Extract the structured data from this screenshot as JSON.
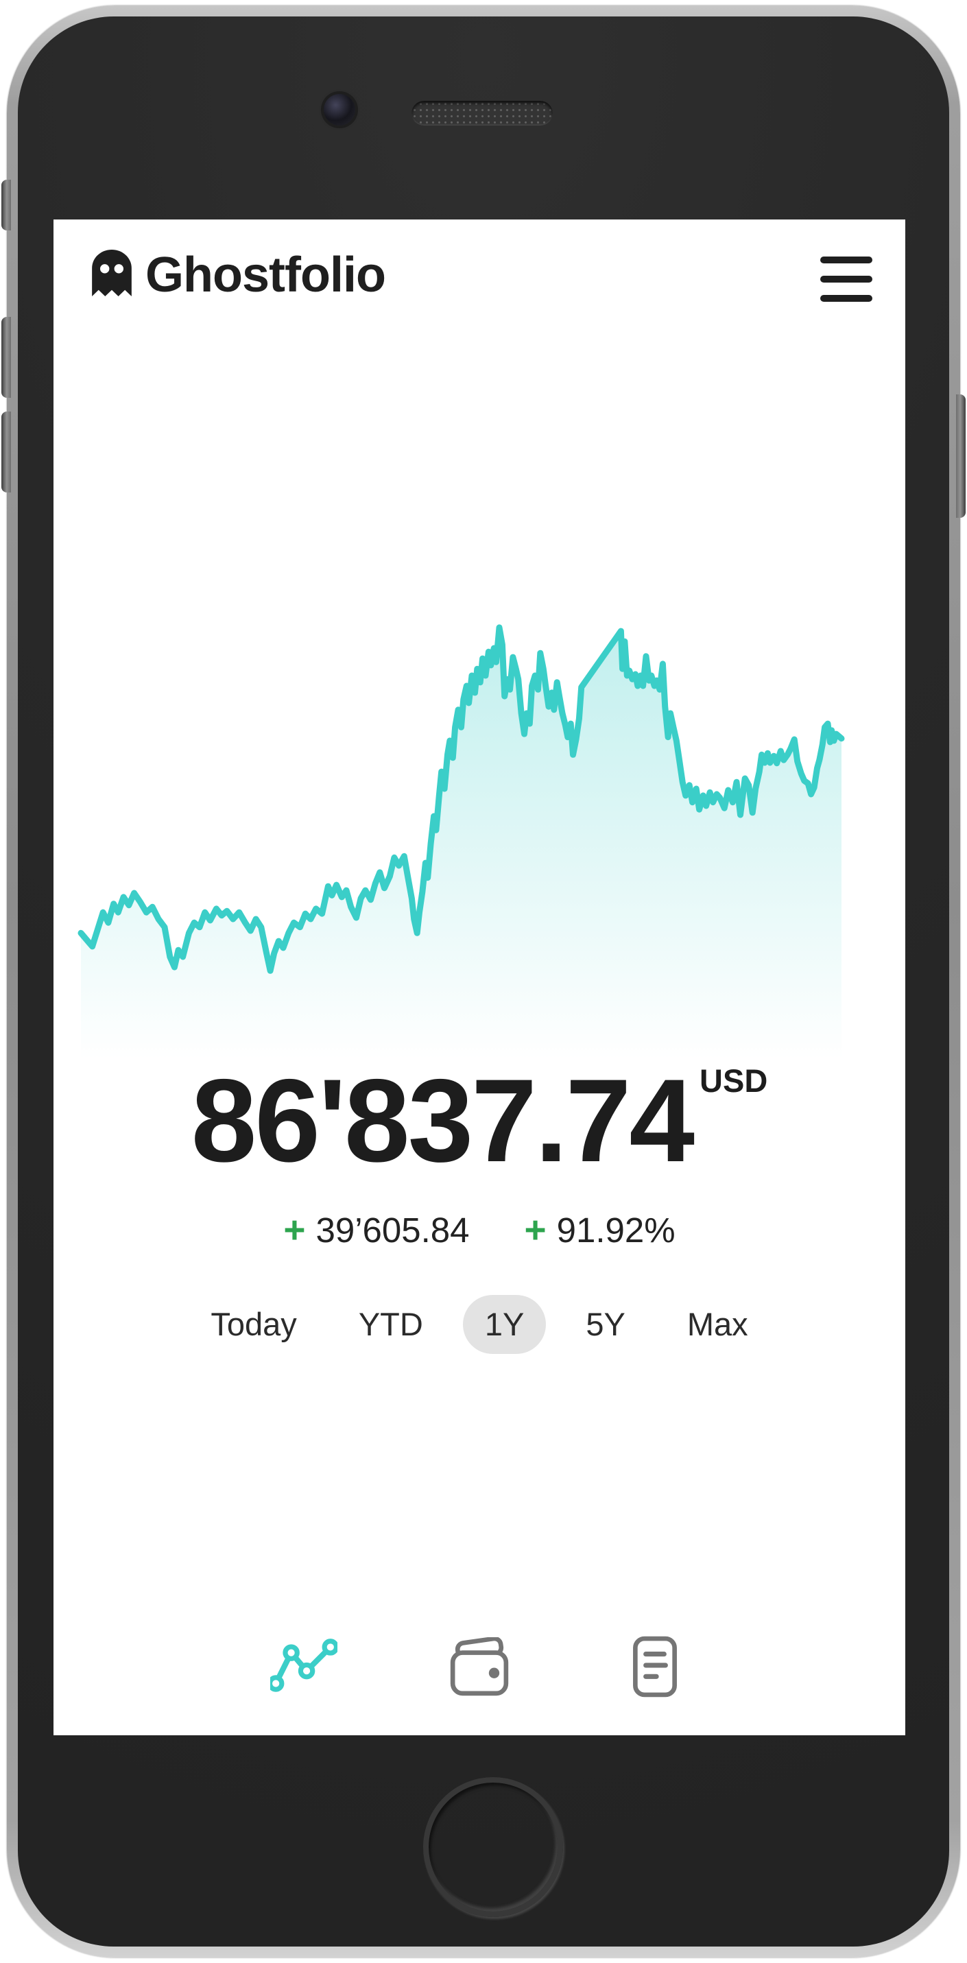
{
  "header": {
    "title": "Ghostfolio",
    "logo_icon": "ghost-icon",
    "menu_icon": "hamburger-icon"
  },
  "portfolio": {
    "value": "86'837.74",
    "currency": "USD",
    "change_sign": "+",
    "change_absolute": "39’605.84",
    "change_percent": "91.92%"
  },
  "ranges": {
    "selected": "1Y",
    "options": [
      {
        "label": "Today"
      },
      {
        "label": "YTD"
      },
      {
        "label": "1Y"
      },
      {
        "label": "5Y"
      },
      {
        "label": "Max"
      }
    ]
  },
  "nav": {
    "items": [
      {
        "icon": "performance-line-icon",
        "active": true
      },
      {
        "icon": "wallet-icon",
        "active": false
      },
      {
        "icon": "transactions-icon",
        "active": false
      }
    ]
  },
  "colors": {
    "chart_line": "#3bcec8",
    "chart_fill_top": "rgba(61,206,201,0.32)",
    "chart_fill_bottom": "rgba(61,206,201,0)",
    "positive_green": "#2da44e",
    "text_primary": "#1f1f1f",
    "range_pill_bg": "#e3e3e3",
    "nav_inactive": "#7a7a7a"
  },
  "chart_data": {
    "type": "area",
    "title": "",
    "xlabel": "",
    "ylabel": "",
    "axes_hidden": true,
    "x_unit": "percent-of-width",
    "y_unit": "percent-of-height-from-top",
    "points": [
      [
        0,
        71.8
      ],
      [
        1.5,
        74.8
      ],
      [
        2.9,
        67.2
      ],
      [
        3.6,
        69.5
      ],
      [
        4.3,
        65.3
      ],
      [
        4.9,
        67.2
      ],
      [
        5.6,
        63.8
      ],
      [
        6.3,
        65.6
      ],
      [
        7,
        62.9
      ],
      [
        7.8,
        64.9
      ],
      [
        8.6,
        67.2
      ],
      [
        9.4,
        66
      ],
      [
        10.2,
        68.7
      ],
      [
        11,
        70.5
      ],
      [
        11.7,
        77.1
      ],
      [
        12.3,
        79.4
      ],
      [
        12.8,
        75.6
      ],
      [
        13.4,
        77.1
      ],
      [
        14.2,
        71.8
      ],
      [
        14.9,
        69.5
      ],
      [
        15.6,
        70.5
      ],
      [
        16.3,
        67.2
      ],
      [
        17,
        69
      ],
      [
        17.8,
        66.4
      ],
      [
        18.5,
        67.9
      ],
      [
        19.2,
        66.9
      ],
      [
        20,
        68.7
      ],
      [
        20.8,
        67.2
      ],
      [
        21.6,
        69.5
      ],
      [
        22.3,
        71.3
      ],
      [
        23,
        68.7
      ],
      [
        23.7,
        70.5
      ],
      [
        24.4,
        76.3
      ],
      [
        24.9,
        80.2
      ],
      [
        25.4,
        76.3
      ],
      [
        26,
        73.6
      ],
      [
        26.6,
        75.1
      ],
      [
        27.3,
        71.8
      ],
      [
        28,
        69.5
      ],
      [
        28.8,
        70.5
      ],
      [
        29.5,
        67.5
      ],
      [
        30.2,
        68.7
      ],
      [
        30.9,
        66.4
      ],
      [
        31.7,
        67.5
      ],
      [
        32.5,
        61.4
      ],
      [
        33,
        63.4
      ],
      [
        33.6,
        61.1
      ],
      [
        34.3,
        63.8
      ],
      [
        34.9,
        62.3
      ],
      [
        35.5,
        66
      ],
      [
        36.2,
        68.4
      ],
      [
        36.8,
        64.1
      ],
      [
        37.4,
        62.3
      ],
      [
        38.1,
        64.4
      ],
      [
        38.7,
        60.8
      ],
      [
        39.3,
        58.3
      ],
      [
        39.9,
        61.8
      ],
      [
        40.6,
        59.2
      ],
      [
        41.2,
        55
      ],
      [
        41.8,
        56.8
      ],
      [
        42.5,
        54.7
      ],
      [
        43,
        59.5
      ],
      [
        43.5,
        64.1
      ],
      [
        43.8,
        68.7
      ],
      [
        44.2,
        71.8
      ],
      [
        44.5,
        67.2
      ],
      [
        44.9,
        62.6
      ],
      [
        45.3,
        56.2
      ],
      [
        45.6,
        59.5
      ],
      [
        46,
        51.9
      ],
      [
        46.4,
        45.8
      ],
      [
        46.7,
        48.9
      ],
      [
        47.1,
        41.2
      ],
      [
        47.4,
        35.9
      ],
      [
        47.8,
        39.7
      ],
      [
        48.2,
        32.1
      ],
      [
        48.5,
        29
      ],
      [
        48.9,
        32.8
      ],
      [
        49.2,
        26
      ],
      [
        49.6,
        22.1
      ],
      [
        50,
        26
      ],
      [
        50.3,
        19.8
      ],
      [
        50.7,
        16.8
      ],
      [
        51,
        20.6
      ],
      [
        51.4,
        14.5
      ],
      [
        51.8,
        18.3
      ],
      [
        52.1,
        13
      ],
      [
        52.5,
        16
      ],
      [
        52.8,
        10.7
      ],
      [
        53.2,
        14.5
      ],
      [
        53.6,
        9.2
      ],
      [
        53.9,
        12.2
      ],
      [
        54.3,
        8.4
      ],
      [
        54.6,
        11.5
      ],
      [
        55,
        3.8
      ],
      [
        55.4,
        7.6
      ],
      [
        55.7,
        19.1
      ],
      [
        56.1,
        15.3
      ],
      [
        56.4,
        17.6
      ],
      [
        56.8,
        10.4
      ],
      [
        57.2,
        13
      ],
      [
        57.5,
        15.3
      ],
      [
        57.9,
        22.9
      ],
      [
        58.3,
        27.5
      ],
      [
        58.6,
        22.9
      ],
      [
        59,
        25.2
      ],
      [
        59.3,
        16.8
      ],
      [
        59.7,
        14.5
      ],
      [
        60.1,
        17.6
      ],
      [
        60.4,
        9.5
      ],
      [
        60.8,
        13
      ],
      [
        61.1,
        16.8
      ],
      [
        61.5,
        21.4
      ],
      [
        61.9,
        18.3
      ],
      [
        62.2,
        22.1
      ],
      [
        62.6,
        16
      ],
      [
        62.9,
        19.1
      ],
      [
        63.3,
        22.9
      ],
      [
        63.7,
        25.6
      ],
      [
        64,
        28.2
      ],
      [
        64.4,
        25.2
      ],
      [
        64.7,
        32.1
      ],
      [
        65.1,
        28.7
      ],
      [
        65.5,
        24.1
      ],
      [
        65.8,
        17.1
      ],
      [
        71,
        4.6
      ],
      [
        71.2,
        13
      ],
      [
        71.5,
        6.9
      ],
      [
        71.8,
        14.5
      ],
      [
        72.1,
        13.4
      ],
      [
        72.5,
        15.3
      ],
      [
        72.9,
        14.2
      ],
      [
        73.2,
        16.8
      ],
      [
        73.6,
        14.5
      ],
      [
        73.9,
        16.8
      ],
      [
        74.3,
        10.2
      ],
      [
        74.7,
        15.6
      ],
      [
        75,
        14.5
      ],
      [
        75.4,
        16.8
      ],
      [
        75.7,
        15.6
      ],
      [
        76.1,
        17.6
      ],
      [
        76.5,
        11.9
      ],
      [
        76.8,
        21.4
      ],
      [
        77.2,
        28.2
      ],
      [
        77.5,
        22.9
      ],
      [
        77.9,
        26
      ],
      [
        78.3,
        29
      ],
      [
        78.7,
        33.6
      ],
      [
        79.1,
        38.2
      ],
      [
        79.5,
        41.2
      ],
      [
        80,
        38.9
      ],
      [
        80.4,
        42.7
      ],
      [
        80.9,
        39.7
      ],
      [
        81.3,
        44.3
      ],
      [
        81.8,
        41.2
      ],
      [
        82.2,
        43.5
      ],
      [
        82.7,
        40.5
      ],
      [
        83.1,
        42.7
      ],
      [
        83.6,
        40.9
      ],
      [
        84,
        41.7
      ],
      [
        84.6,
        44
      ],
      [
        85.1,
        40
      ],
      [
        85.7,
        42.7
      ],
      [
        86.2,
        38.2
      ],
      [
        86.7,
        45.5
      ],
      [
        87.3,
        37.4
      ],
      [
        87.8,
        38.9
      ],
      [
        88.3,
        45
      ],
      [
        88.7,
        39.7
      ],
      [
        89.2,
        35.9
      ],
      [
        89.5,
        32.1
      ],
      [
        89.9,
        33.9
      ],
      [
        90.3,
        31.8
      ],
      [
        90.6,
        33.9
      ],
      [
        91.1,
        32.4
      ],
      [
        91.5,
        34
      ],
      [
        92,
        31.3
      ],
      [
        92.4,
        33.3
      ],
      [
        92.9,
        32.1
      ],
      [
        93.3,
        30.8
      ],
      [
        93.8,
        28.7
      ],
      [
        94.2,
        33.6
      ],
      [
        94.7,
        36.3
      ],
      [
        95.1,
        37.9
      ],
      [
        95.6,
        38.5
      ],
      [
        96,
        40.9
      ],
      [
        96.4,
        39.4
      ],
      [
        96.8,
        35.1
      ],
      [
        97.1,
        33.3
      ],
      [
        97.5,
        29.8
      ],
      [
        97.8,
        26
      ],
      [
        98.2,
        25.2
      ],
      [
        98.5,
        29.3
      ],
      [
        98.7,
        26.7
      ],
      [
        99,
        29
      ],
      [
        99.3,
        27.5
      ],
      [
        100,
        28.5
      ]
    ]
  }
}
